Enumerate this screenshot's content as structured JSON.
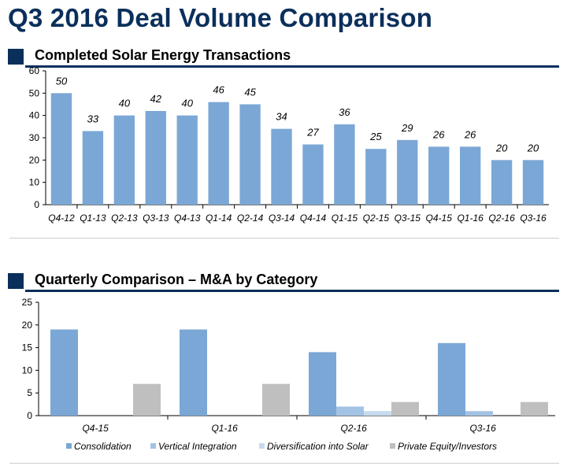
{
  "page": {
    "title": "Q3 2016 Deal Volume Comparison",
    "section1_title": "Completed Solar Energy Transactions",
    "section2_title": "Quarterly Comparison – M&A by Category"
  },
  "colors": {
    "navy": "#0b2f5b",
    "consolidation": "#7ba7d6",
    "vertical_integration": "#a3c3e4",
    "diversification": "#c7daee",
    "private_equity": "#bfbfbf"
  },
  "chart_data": [
    {
      "type": "bar",
      "title": "Completed Solar Energy Transactions",
      "categories": [
        "Q4-12",
        "Q1-13",
        "Q2-13",
        "Q3-13",
        "Q4-13",
        "Q1-14",
        "Q2-14",
        "Q3-14",
        "Q4-14",
        "Q1-15",
        "Q2-15",
        "Q3-15",
        "Q4-15",
        "Q1-16",
        "Q2-16",
        "Q3-16"
      ],
      "values": [
        50,
        33,
        40,
        42,
        40,
        46,
        45,
        34,
        27,
        36,
        25,
        29,
        26,
        26,
        20,
        20
      ],
      "ylim": [
        0,
        60
      ],
      "yticks": [
        0,
        10,
        20,
        30,
        40,
        50,
        60
      ],
      "data_labels": true,
      "grid": false
    },
    {
      "type": "bar",
      "title": "Quarterly Comparison – M&A by Category",
      "categories": [
        "Q4-15",
        "Q1-16",
        "Q2-16",
        "Q3-16"
      ],
      "series": [
        {
          "name": "Consolidation",
          "values": [
            19,
            19,
            14,
            16
          ]
        },
        {
          "name": "Vertical Integration",
          "values": [
            0,
            0,
            2,
            1
          ]
        },
        {
          "name": "Diversification into Solar",
          "values": [
            0,
            0,
            1,
            0
          ]
        },
        {
          "name": "Private Equity/Investors",
          "values": [
            7,
            7,
            3,
            3
          ]
        }
      ],
      "ylim": [
        0,
        25
      ],
      "yticks": [
        0,
        5,
        10,
        15,
        20,
        25
      ],
      "legend": "bottom",
      "grid": false
    }
  ]
}
